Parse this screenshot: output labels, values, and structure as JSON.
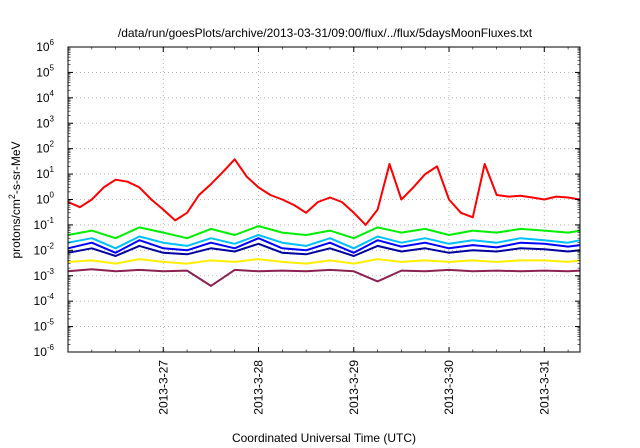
{
  "chart_data": {
    "type": "line",
    "title": "/data/run/goesPlots/archive/2013-03-31/09:00/flux/../flux/5daysMoonFluxes.txt",
    "xlabel": "Coordinated Universal Time (UTC)",
    "ylabel_parts": [
      "protons/cm",
      "2",
      "-s-sr-MeV"
    ],
    "yscale": "log",
    "ylim": [
      1e-06,
      1000000.0
    ],
    "x_range": [
      "2013-03-26 00:00",
      "2013-03-31 09:00"
    ],
    "grid": true,
    "legend": "none",
    "y_ticks": [
      {
        "value": 1e-06,
        "base": "10",
        "exp": "-6"
      },
      {
        "value": 1e-05,
        "base": "10",
        "exp": "-5"
      },
      {
        "value": 0.0001,
        "base": "10",
        "exp": "-4"
      },
      {
        "value": 0.001,
        "base": "10",
        "exp": "-3"
      },
      {
        "value": 0.01,
        "base": "10",
        "exp": "-2"
      },
      {
        "value": 0.1,
        "base": "10",
        "exp": "-1"
      },
      {
        "value": 1.0,
        "base": "10",
        "exp": "0"
      },
      {
        "value": 10.0,
        "base": "10",
        "exp": "1"
      },
      {
        "value": 100.0,
        "base": "10",
        "exp": "2"
      },
      {
        "value": 1000.0,
        "base": "10",
        "exp": "3"
      },
      {
        "value": 10000.0,
        "base": "10",
        "exp": "4"
      },
      {
        "value": 100000.0,
        "base": "10",
        "exp": "5"
      },
      {
        "value": 1000000.0,
        "base": "10",
        "exp": "6"
      }
    ],
    "x_ticks": [
      "2013-3-27",
      "2013-3-28",
      "2013-3-29",
      "2013-3-30",
      "2013-3-31"
    ],
    "series": [
      {
        "color": "#ff0000",
        "x": [
          "2013-03-26 00:00",
          "2013-03-26 03:00",
          "2013-03-26 06:00",
          "2013-03-26 09:00",
          "2013-03-26 12:00",
          "2013-03-26 15:00",
          "2013-03-26 18:00",
          "2013-03-26 21:00",
          "2013-03-27 00:00",
          "2013-03-27 03:00",
          "2013-03-27 06:00",
          "2013-03-27 09:00",
          "2013-03-27 12:00",
          "2013-03-27 15:00",
          "2013-03-27 18:00",
          "2013-03-27 21:00",
          "2013-03-28 00:00",
          "2013-03-28 03:00",
          "2013-03-28 06:00",
          "2013-03-28 09:00",
          "2013-03-28 12:00",
          "2013-03-28 15:00",
          "2013-03-28 18:00",
          "2013-03-28 21:00",
          "2013-03-29 00:00",
          "2013-03-29 03:00",
          "2013-03-29 06:00",
          "2013-03-29 09:00",
          "2013-03-29 12:00",
          "2013-03-29 15:00",
          "2013-03-29 18:00",
          "2013-03-29 21:00",
          "2013-03-30 00:00",
          "2013-03-30 03:00",
          "2013-03-30 06:00",
          "2013-03-30 09:00",
          "2013-03-30 12:00",
          "2013-03-30 15:00",
          "2013-03-30 18:00",
          "2013-03-30 21:00",
          "2013-03-31 00:00",
          "2013-03-31 03:00",
          "2013-03-31 06:00",
          "2013-03-31 09:00"
        ],
        "values": [
          0.8,
          0.5,
          1.0,
          3.0,
          6.0,
          5.0,
          3.0,
          1.0,
          0.4,
          0.15,
          0.3,
          1.5,
          4.0,
          12,
          38,
          8,
          3,
          1.5,
          1.0,
          0.6,
          0.3,
          0.8,
          1.2,
          0.8,
          0.3,
          0.1,
          0.4,
          25,
          1.0,
          3,
          10,
          20,
          1.0,
          0.3,
          0.2,
          25,
          1.5,
          1.3,
          1.4,
          1.2,
          1.0,
          1.3,
          1.2,
          1.0
        ]
      },
      {
        "color": "#00ee00",
        "x": [
          "2013-03-26 00:00",
          "2013-03-26 06:00",
          "2013-03-26 12:00",
          "2013-03-26 18:00",
          "2013-03-27 00:00",
          "2013-03-27 06:00",
          "2013-03-27 12:00",
          "2013-03-27 18:00",
          "2013-03-28 00:00",
          "2013-03-28 06:00",
          "2013-03-28 12:00",
          "2013-03-28 18:00",
          "2013-03-29 00:00",
          "2013-03-29 06:00",
          "2013-03-29 12:00",
          "2013-03-29 18:00",
          "2013-03-30 00:00",
          "2013-03-30 06:00",
          "2013-03-30 12:00",
          "2013-03-30 18:00",
          "2013-03-31 00:00",
          "2013-03-31 06:00",
          "2013-03-31 09:00"
        ],
        "values": [
          0.04,
          0.06,
          0.03,
          0.08,
          0.05,
          0.03,
          0.07,
          0.04,
          0.09,
          0.05,
          0.04,
          0.06,
          0.03,
          0.08,
          0.05,
          0.07,
          0.04,
          0.06,
          0.05,
          0.07,
          0.06,
          0.05,
          0.06
        ]
      },
      {
        "color": "#00bfff",
        "x": [
          "2013-03-26 00:00",
          "2013-03-26 06:00",
          "2013-03-26 12:00",
          "2013-03-26 18:00",
          "2013-03-27 00:00",
          "2013-03-27 06:00",
          "2013-03-27 12:00",
          "2013-03-27 18:00",
          "2013-03-28 00:00",
          "2013-03-28 06:00",
          "2013-03-28 12:00",
          "2013-03-28 18:00",
          "2013-03-29 00:00",
          "2013-03-29 06:00",
          "2013-03-29 12:00",
          "2013-03-29 18:00",
          "2013-03-30 00:00",
          "2013-03-30 06:00",
          "2013-03-30 12:00",
          "2013-03-30 18:00",
          "2013-03-31 00:00",
          "2013-03-31 06:00",
          "2013-03-31 09:00"
        ],
        "values": [
          0.02,
          0.03,
          0.012,
          0.035,
          0.02,
          0.015,
          0.03,
          0.018,
          0.04,
          0.02,
          0.015,
          0.03,
          0.012,
          0.035,
          0.02,
          0.03,
          0.018,
          0.025,
          0.02,
          0.03,
          0.025,
          0.02,
          0.025
        ]
      },
      {
        "color": "#0000ff",
        "x": [
          "2013-03-26 00:00",
          "2013-03-26 06:00",
          "2013-03-26 12:00",
          "2013-03-26 18:00",
          "2013-03-27 00:00",
          "2013-03-27 06:00",
          "2013-03-27 12:00",
          "2013-03-27 18:00",
          "2013-03-28 00:00",
          "2013-03-28 06:00",
          "2013-03-28 12:00",
          "2013-03-28 18:00",
          "2013-03-29 00:00",
          "2013-03-29 06:00",
          "2013-03-29 12:00",
          "2013-03-29 18:00",
          "2013-03-30 00:00",
          "2013-03-30 06:00",
          "2013-03-30 12:00",
          "2013-03-30 18:00",
          "2013-03-31 00:00",
          "2013-03-31 06:00",
          "2013-03-31 09:00"
        ],
        "values": [
          0.012,
          0.02,
          0.008,
          0.025,
          0.012,
          0.01,
          0.02,
          0.012,
          0.03,
          0.012,
          0.01,
          0.02,
          0.008,
          0.025,
          0.014,
          0.02,
          0.012,
          0.016,
          0.013,
          0.02,
          0.018,
          0.014,
          0.016
        ]
      },
      {
        "color": "#0000a0",
        "x": [
          "2013-03-26 00:00",
          "2013-03-26 06:00",
          "2013-03-26 12:00",
          "2013-03-26 18:00",
          "2013-03-27 00:00",
          "2013-03-27 06:00",
          "2013-03-27 12:00",
          "2013-03-27 18:00",
          "2013-03-28 00:00",
          "2013-03-28 06:00",
          "2013-03-28 12:00",
          "2013-03-28 18:00",
          "2013-03-29 00:00",
          "2013-03-29 06:00",
          "2013-03-29 12:00",
          "2013-03-29 18:00",
          "2013-03-30 00:00",
          "2013-03-30 06:00",
          "2013-03-30 12:00",
          "2013-03-30 18:00",
          "2013-03-31 00:00",
          "2013-03-31 06:00",
          "2013-03-31 09:00"
        ],
        "values": [
          0.008,
          0.012,
          0.006,
          0.015,
          0.008,
          0.007,
          0.012,
          0.009,
          0.018,
          0.008,
          0.007,
          0.012,
          0.006,
          0.015,
          0.009,
          0.012,
          0.008,
          0.01,
          0.009,
          0.012,
          0.011,
          0.009,
          0.01
        ]
      },
      {
        "color": "#ffee00",
        "x": [
          "2013-03-26 00:00",
          "2013-03-26 06:00",
          "2013-03-26 12:00",
          "2013-03-26 18:00",
          "2013-03-27 00:00",
          "2013-03-27 06:00",
          "2013-03-27 12:00",
          "2013-03-27 18:00",
          "2013-03-28 00:00",
          "2013-03-28 06:00",
          "2013-03-28 12:00",
          "2013-03-28 18:00",
          "2013-03-29 00:00",
          "2013-03-29 06:00",
          "2013-03-29 12:00",
          "2013-03-29 18:00",
          "2013-03-30 00:00",
          "2013-03-30 06:00",
          "2013-03-30 12:00",
          "2013-03-30 18:00",
          "2013-03-31 00:00",
          "2013-03-31 06:00",
          "2013-03-31 09:00"
        ],
        "values": [
          0.0035,
          0.004,
          0.003,
          0.0045,
          0.0035,
          0.003,
          0.004,
          0.0035,
          0.0045,
          0.0035,
          0.003,
          0.004,
          0.003,
          0.0045,
          0.0035,
          0.004,
          0.0035,
          0.004,
          0.0035,
          0.004,
          0.004,
          0.0035,
          0.004
        ]
      },
      {
        "color": "#8b2252",
        "x": [
          "2013-03-26 00:00",
          "2013-03-26 06:00",
          "2013-03-26 12:00",
          "2013-03-26 18:00",
          "2013-03-27 00:00",
          "2013-03-27 06:00",
          "2013-03-27 12:00",
          "2013-03-27 18:00",
          "2013-03-28 00:00",
          "2013-03-28 06:00",
          "2013-03-28 12:00",
          "2013-03-28 18:00",
          "2013-03-29 00:00",
          "2013-03-29 06:00",
          "2013-03-29 12:00",
          "2013-03-29 18:00",
          "2013-03-30 00:00",
          "2013-03-30 06:00",
          "2013-03-30 12:00",
          "2013-03-30 18:00",
          "2013-03-31 00:00",
          "2013-03-31 06:00",
          "2013-03-31 09:00"
        ],
        "values": [
          0.0015,
          0.0018,
          0.0015,
          0.0017,
          0.0015,
          0.0016,
          0.0004,
          0.0017,
          0.0015,
          0.0016,
          0.0015,
          0.0017,
          0.0015,
          0.0006,
          0.0016,
          0.0015,
          0.0017,
          0.0015,
          0.0016,
          0.0015,
          0.0016,
          0.0015,
          0.0016
        ]
      }
    ]
  }
}
